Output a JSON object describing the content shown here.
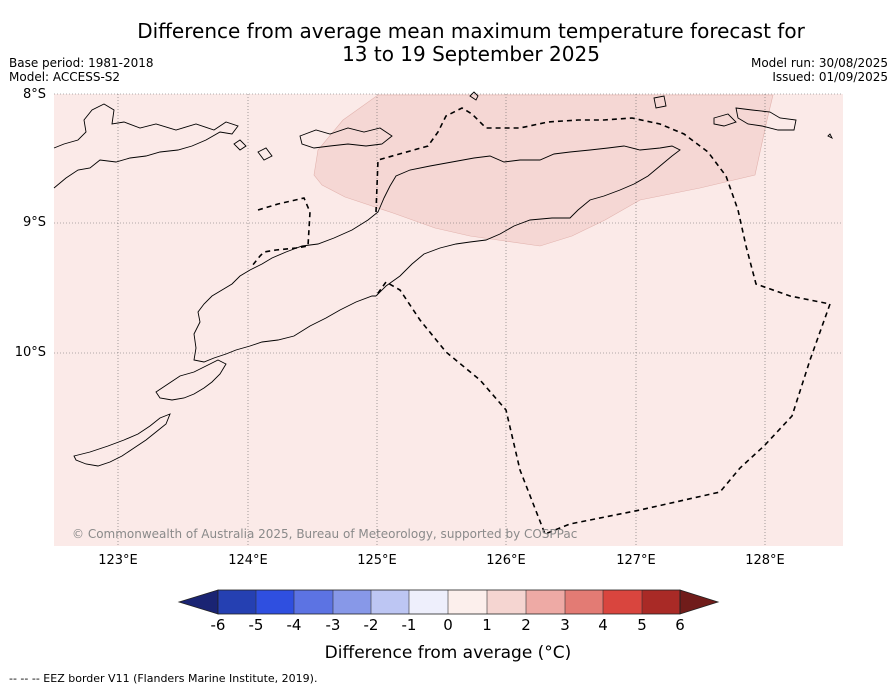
{
  "title": {
    "line1": "Difference from average mean maximum temperature forecast for",
    "line2": "13 to 19 September 2025"
  },
  "meta": {
    "base_period": "Base period: 1981-2018",
    "model": "Model: ACCESS-S2",
    "model_run": "Model run: 30/08/2025",
    "issued": "Issued: 01/09/2025"
  },
  "map": {
    "lat_labels": [
      "8°S",
      "9°S",
      "10°S"
    ],
    "lon_labels": [
      "123°E",
      "124°E",
      "125°E",
      "126°E",
      "127°E",
      "128°E"
    ],
    "copyright": "© Commonwealth of Australia 2025, Bureau of Meteorology, supported by COSPPac",
    "colors": {
      "background_anomaly_0_to_1": "#fbeae8",
      "anomaly_1_to_2": "#f5d7d4"
    }
  },
  "colorbar": {
    "ticks": [
      "-6",
      "-5",
      "-4",
      "-3",
      "-2",
      "-1",
      "0",
      "1",
      "2",
      "3",
      "4",
      "5",
      "6"
    ],
    "colors": [
      "#1a2473",
      "#2540b2",
      "#2f4fe0",
      "#5c73e3",
      "#8798e8",
      "#bdc6f3",
      "#eeeffc",
      "#fcefec",
      "#f5d5d1",
      "#eeaaa5",
      "#e37b74",
      "#d9453e",
      "#a92a26",
      "#701c1a"
    ],
    "label": "Difference from average (°C)"
  },
  "footer": "--  --  -- EEZ border V11 (Flanders Marine Institute, 2019)."
}
